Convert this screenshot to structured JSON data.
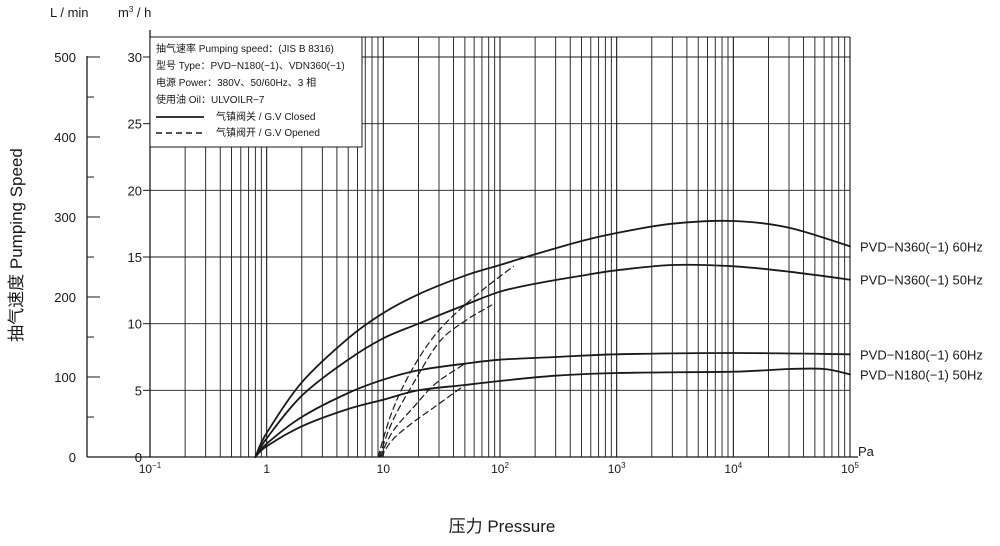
{
  "chart_data": {
    "type": "line",
    "title": "",
    "xlabel": "压力 Pressure",
    "ylabel": "抽气速度 Pumping Speed",
    "x_scale": "log",
    "xlim": [
      0.1,
      100000
    ],
    "x_unit": "Pa",
    "x_ticks": [
      {
        "value": 0.1,
        "base": "10",
        "exp": "−1"
      },
      {
        "value": 1,
        "base": "1",
        "exp": ""
      },
      {
        "value": 10,
        "base": "10",
        "exp": ""
      },
      {
        "value": 100,
        "base": "10",
        "exp": "2"
      },
      {
        "value": 1000,
        "base": "10",
        "exp": "3"
      },
      {
        "value": 10000,
        "base": "10",
        "exp": "4"
      },
      {
        "value": 100000,
        "base": "10",
        "exp": "5"
      }
    ],
    "y_left": {
      "unit": "L / min",
      "ticks": [
        "0",
        "100",
        "200",
        "300",
        "400",
        "500"
      ],
      "values": [
        0,
        100,
        200,
        300,
        400,
        500
      ]
    },
    "y_right": {
      "unit_base": "m",
      "unit_sup": "3",
      "unit_tail": " / h",
      "ticks": [
        "0",
        "5",
        "10",
        "15",
        "20",
        "25",
        "30"
      ],
      "values": [
        0,
        5,
        10,
        15,
        20,
        25,
        30
      ]
    },
    "ylim": [
      0,
      31.5
    ],
    "grid": true,
    "legend": {
      "position": "top-left",
      "lines": [
        "抽气速率 Pumping speed：(JIS B 8316)",
        "型号 Type：PVD−N180(−1)、VDN360(−1)",
        "电源 Power：380V、50/60Hz、3 相",
        "使用油 Oil：ULVOILR−7"
      ],
      "closed_label": "气镇阀关 / G.V Closed",
      "opened_label": "气镇阀开 / G.V Opened"
    },
    "series": [
      {
        "name": "PVD−N360(−1)  60Hz",
        "style": "solid",
        "points": [
          [
            0.8,
            0
          ],
          [
            1,
            1.8
          ],
          [
            2,
            5.6
          ],
          [
            5,
            8.9
          ],
          [
            10,
            10.8
          ],
          [
            20,
            12.2
          ],
          [
            50,
            13.6
          ],
          [
            100,
            14.4
          ],
          [
            200,
            15.2
          ],
          [
            500,
            16.2
          ],
          [
            1000,
            16.8
          ],
          [
            3000,
            17.5
          ],
          [
            10000,
            17.7
          ],
          [
            30000,
            17.2
          ],
          [
            100000,
            15.8
          ]
        ]
      },
      {
        "name": "PVD−N360(−1)  50Hz",
        "style": "solid",
        "points": [
          [
            0.8,
            0
          ],
          [
            1,
            1.4
          ],
          [
            2,
            4.6
          ],
          [
            5,
            7.3
          ],
          [
            10,
            8.9
          ],
          [
            20,
            10.0
          ],
          [
            50,
            11.4
          ],
          [
            100,
            12.4
          ],
          [
            200,
            13.0
          ],
          [
            500,
            13.6
          ],
          [
            1000,
            14.0
          ],
          [
            3000,
            14.4
          ],
          [
            10000,
            14.3
          ],
          [
            30000,
            13.9
          ],
          [
            100000,
            13.3
          ]
        ]
      },
      {
        "name": "PVD−N180(−1)  60Hz",
        "style": "solid",
        "points": [
          [
            0.8,
            0
          ],
          [
            1,
            1.0
          ],
          [
            2,
            3.0
          ],
          [
            5,
            4.8
          ],
          [
            10,
            5.8
          ],
          [
            20,
            6.5
          ],
          [
            50,
            7.0
          ],
          [
            100,
            7.3
          ],
          [
            300,
            7.5
          ],
          [
            1000,
            7.7
          ],
          [
            10000,
            7.8
          ],
          [
            100000,
            7.7
          ]
        ]
      },
      {
        "name": "PVD−N180(−1)  50Hz",
        "style": "solid",
        "points": [
          [
            0.8,
            0
          ],
          [
            1,
            0.8
          ],
          [
            2,
            2.3
          ],
          [
            5,
            3.6
          ],
          [
            10,
            4.3
          ],
          [
            20,
            5.0
          ],
          [
            50,
            5.4
          ],
          [
            100,
            5.7
          ],
          [
            300,
            6.1
          ],
          [
            1000,
            6.3
          ],
          [
            10000,
            6.4
          ],
          [
            30000,
            6.6
          ],
          [
            60000,
            6.6
          ],
          [
            100000,
            6.2
          ]
        ]
      },
      {
        "name": "",
        "style": "dashed",
        "points": [
          [
            9,
            0
          ],
          [
            12,
            3.5
          ],
          [
            18,
            6.7
          ],
          [
            30,
            9.5
          ],
          [
            60,
            12.0
          ],
          [
            130,
            14.3
          ]
        ]
      },
      {
        "name": "",
        "style": "dashed",
        "points": [
          [
            9.2,
            0
          ],
          [
            12,
            2.7
          ],
          [
            18,
            5.5
          ],
          [
            30,
            8.6
          ],
          [
            50,
            10.2
          ],
          [
            85,
            11.4
          ]
        ]
      },
      {
        "name": "",
        "style": "dashed",
        "points": [
          [
            9.4,
            0
          ],
          [
            12,
            1.9
          ],
          [
            18,
            3.7
          ],
          [
            28,
            5.5
          ],
          [
            50,
            7.0
          ]
        ]
      },
      {
        "name": "",
        "style": "dashed",
        "points": [
          [
            9.6,
            0
          ],
          [
            12,
            1.3
          ],
          [
            18,
            2.6
          ],
          [
            28,
            3.8
          ],
          [
            50,
            5.4
          ]
        ]
      }
    ]
  }
}
